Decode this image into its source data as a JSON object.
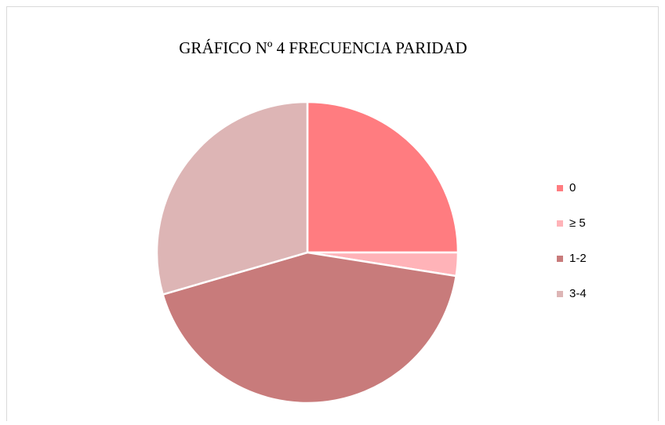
{
  "chart_data": {
    "type": "pie",
    "title": "GRÁFICO Nº 4 FRECUENCIA PARIDAD",
    "categories": [
      "0",
      "≥ 5",
      "1-2",
      "3-4"
    ],
    "values": [
      25,
      2.5,
      43,
      29.5
    ],
    "colors": [
      "#ff7c80",
      "#ffb3b8",
      "#c87b7b",
      "#ddb5b5"
    ],
    "legend": "right"
  }
}
